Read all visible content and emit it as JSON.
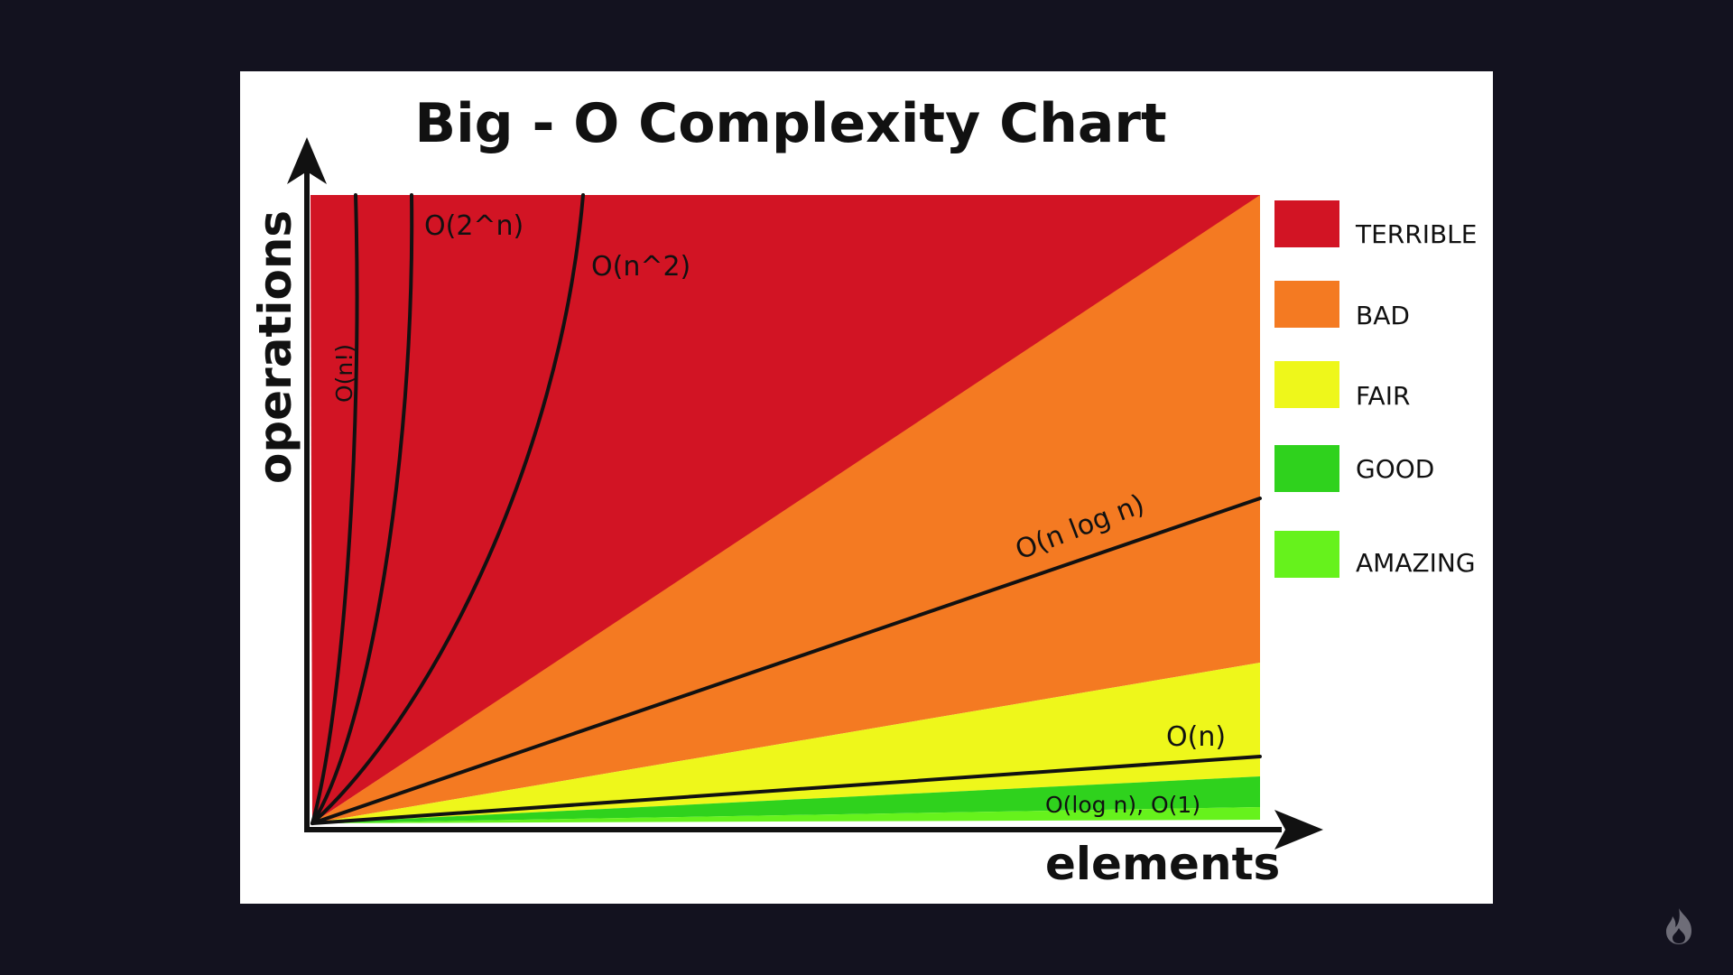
{
  "chart_data": {
    "type": "area",
    "title": "Big - O  Complexity Chart",
    "xlabel": "elements",
    "ylabel": "operations",
    "xlim": [
      0,
      1
    ],
    "ylim": [
      0,
      1
    ],
    "grid": false,
    "legend_position": "right",
    "regions": [
      {
        "name": "TERRIBLE",
        "color": "#d21424"
      },
      {
        "name": "BAD",
        "color": "#f47a22"
      },
      {
        "name": "FAIR",
        "color": "#eef71b"
      },
      {
        "name": "GOOD",
        "color": "#2fd21d"
      },
      {
        "name": "AMAZING",
        "color": "#66f21c"
      }
    ],
    "curves": [
      {
        "label": "O(n!)"
      },
      {
        "label": "O(2^n)"
      },
      {
        "label": "O(n^2)"
      },
      {
        "label": "O(n log n)"
      },
      {
        "label": "O(n)"
      },
      {
        "label": "O(log n), O(1)"
      }
    ],
    "legend": [
      {
        "label": "TERRIBLE",
        "color": "#d21424"
      },
      {
        "label": "BAD",
        "color": "#f47a22"
      },
      {
        "label": "FAIR",
        "color": "#eef71b"
      },
      {
        "label": "GOOD",
        "color": "#2fd21d"
      },
      {
        "label": "AMAZING",
        "color": "#66f21c"
      }
    ]
  },
  "icons": {
    "corner": "flame-icon"
  },
  "colors": {
    "background": "#13121f",
    "card": "#ffffff",
    "axis": "#111111"
  }
}
